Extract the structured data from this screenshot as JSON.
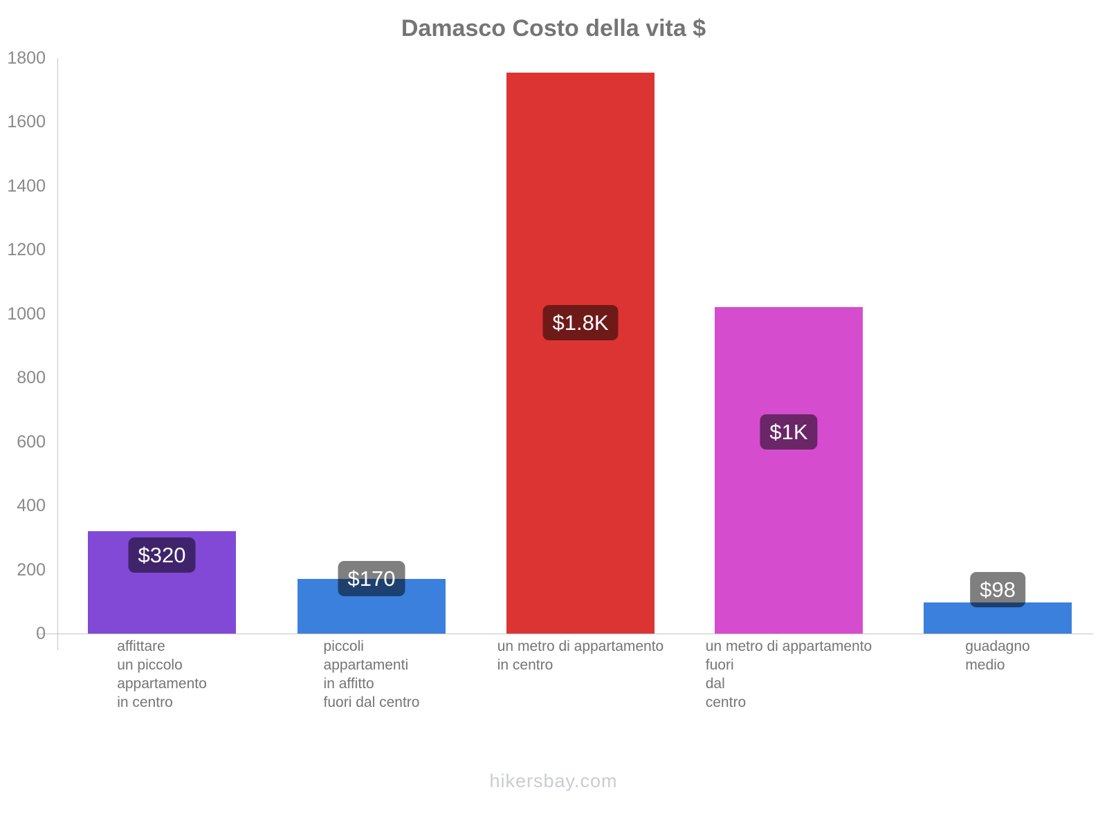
{
  "title": "Damasco Costo della vita $",
  "footer": "hikersbay.com",
  "colors": {
    "title_text": "#757575",
    "tick_label_text": "#8a8a8a",
    "category_label_text": "#757575",
    "axis_line": "#c3c3c3",
    "data_label_badge_bg": "rgba(0,0,0,0.5)",
    "data_label_text": "#ffffff",
    "footer_text": "#c9ccd1",
    "background": "#ffffff"
  },
  "chart_data": {
    "type": "bar",
    "title": "Damasco Costo della vita $",
    "xlabel": "",
    "ylabel": "",
    "ylim": [
      0,
      1800
    ],
    "yticks": [
      0,
      200,
      400,
      600,
      800,
      1000,
      1200,
      1400,
      1600,
      1800
    ],
    "grid": false,
    "legend": false,
    "currency": "$",
    "categories": [
      "affittare un piccolo appartamento in centro",
      "piccoli appartamenti in affitto fuori dal centro",
      "un metro di appartamento in centro",
      "un metro di appartamento fuori dal centro",
      "guadagno medio"
    ],
    "category_line_breaks": [
      [
        "affittare",
        "un piccolo",
        "appartamento",
        "in centro"
      ],
      [
        "piccoli",
        "appartamenti",
        "in affitto",
        "fuori dal centro"
      ],
      [
        "un metro di appartamento",
        "in centro"
      ],
      [
        "un metro di appartamento",
        "fuori",
        "dal",
        "centro"
      ],
      [
        "guadagno",
        "medio"
      ]
    ],
    "values": [
      320,
      170,
      1754,
      1022,
      98
    ],
    "data_labels": [
      "$320",
      "$170",
      "$1.8K",
      "$1K",
      "$98"
    ],
    "bar_colors": [
      "#8149d6",
      "#3a80dc",
      "#dc3433",
      "#d54ccf",
      "#3a80dc"
    ]
  }
}
